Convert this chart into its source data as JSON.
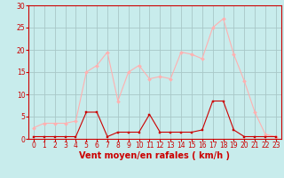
{
  "x": [
    0,
    1,
    2,
    3,
    4,
    5,
    6,
    7,
    8,
    9,
    10,
    11,
    12,
    13,
    14,
    15,
    16,
    17,
    18,
    19,
    20,
    21,
    22,
    23
  ],
  "rafales": [
    2.5,
    3.5,
    3.5,
    3.5,
    4.0,
    15,
    16.5,
    19.5,
    8.5,
    15,
    16.5,
    13.5,
    14.0,
    13.5,
    19.5,
    19,
    18,
    25,
    27,
    19,
    13,
    6,
    1,
    0.5
  ],
  "vent_moyen": [
    0.5,
    0.5,
    0.5,
    0.5,
    0.5,
    6,
    6,
    0.5,
    1.5,
    1.5,
    1.5,
    5.5,
    1.5,
    1.5,
    1.5,
    1.5,
    2.0,
    8.5,
    8.5,
    2,
    0.5,
    0.5,
    0.5,
    0.5
  ],
  "xlabel": "Vent moyen/en rafales ( km/h )",
  "ylim": [
    0,
    30
  ],
  "xlim": [
    -0.5,
    23.5
  ],
  "yticks": [
    0,
    5,
    10,
    15,
    20,
    25,
    30
  ],
  "xticks": [
    0,
    1,
    2,
    3,
    4,
    5,
    6,
    7,
    8,
    9,
    10,
    11,
    12,
    13,
    14,
    15,
    16,
    17,
    18,
    19,
    20,
    21,
    22,
    23
  ],
  "color_rafales": "#FFB0B0",
  "color_vent": "#CC0000",
  "bg_color": "#C8ECEC",
  "grid_color": "#A8C8C8",
  "axis_color": "#CC0000",
  "label_color": "#CC0000",
  "tick_fontsize": 5.5,
  "xlabel_fontsize": 7.0
}
